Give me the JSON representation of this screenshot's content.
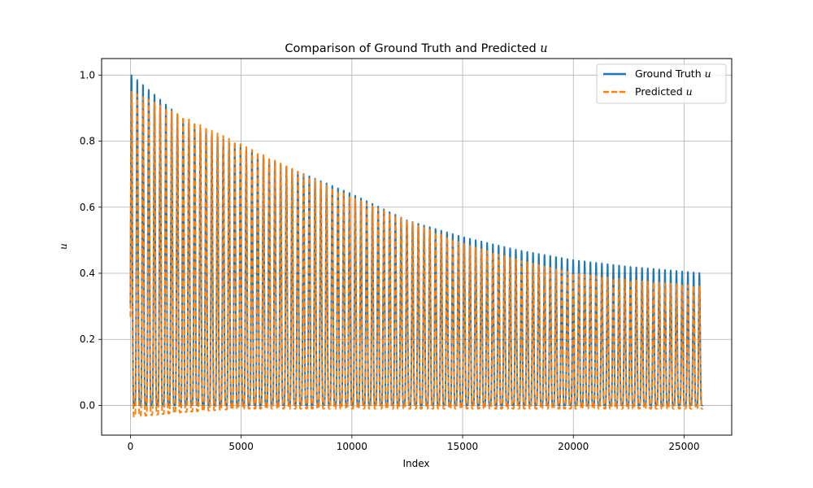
{
  "chart_data": {
    "type": "line",
    "title": "Comparison of Ground Truth and Predicted ",
    "title_var": "u",
    "xlabel": "Index",
    "ylabel": "u",
    "xlim": [
      -1300,
      27150
    ],
    "ylim": [
      -0.09,
      1.05
    ],
    "xticks": [
      0,
      5000,
      10000,
      15000,
      20000,
      25000
    ],
    "xtick_labels": [
      "0",
      "5000",
      "10000",
      "15000",
      "20000",
      "25000"
    ],
    "yticks": [
      0.0,
      0.2,
      0.4,
      0.6,
      0.8,
      1.0
    ],
    "ytick_labels": [
      "0.0",
      "0.2",
      "0.4",
      "0.6",
      "0.8",
      "1.0"
    ],
    "grid": true,
    "legend_position": "top-right",
    "x_start": 0,
    "x_end": 25850,
    "period": 259,
    "series": [
      {
        "name": "Ground Truth ",
        "name_var": "u",
        "color": "#1f77b4",
        "style": "solid",
        "peak_envelope": [
          [
            50,
            1.0
          ],
          [
            2500,
            0.86
          ],
          [
            5000,
            0.78
          ],
          [
            7500,
            0.71
          ],
          [
            10000,
            0.64
          ],
          [
            12500,
            0.56
          ],
          [
            15000,
            0.51
          ],
          [
            17500,
            0.47
          ],
          [
            20000,
            0.44
          ],
          [
            22500,
            0.42
          ],
          [
            25850,
            0.4
          ]
        ],
        "trough_envelope": [
          [
            0,
            0.0
          ],
          [
            25850,
            0.0
          ]
        ]
      },
      {
        "name": "Predicted ",
        "name_var": "u",
        "color": "#ff7f0e",
        "style": "dashed",
        "peak_envelope": [
          [
            50,
            0.95
          ],
          [
            1000,
            0.92
          ],
          [
            2500,
            0.87
          ],
          [
            5000,
            0.79
          ],
          [
            7500,
            0.71
          ],
          [
            10000,
            0.63
          ],
          [
            12500,
            0.56
          ],
          [
            15000,
            0.49
          ],
          [
            17500,
            0.44
          ],
          [
            20000,
            0.4
          ],
          [
            22500,
            0.38
          ],
          [
            25850,
            0.36
          ]
        ],
        "trough_envelope": [
          [
            0,
            -0.035
          ],
          [
            2500,
            -0.02
          ],
          [
            5000,
            -0.01
          ],
          [
            25850,
            -0.01
          ]
        ]
      }
    ]
  },
  "colors": {
    "grid": "#b0b0b0",
    "axes": "#000000",
    "legend_border": "#cccccc"
  }
}
